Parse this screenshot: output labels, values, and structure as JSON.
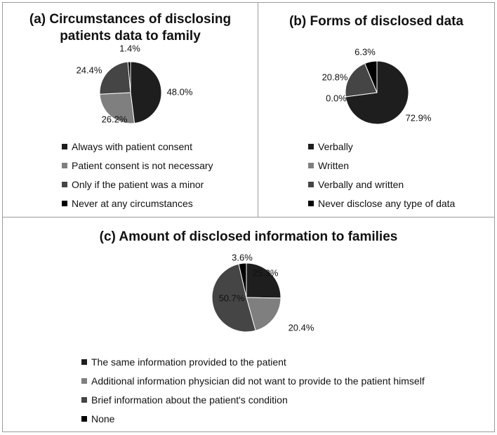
{
  "chart_data": [
    {
      "type": "pie",
      "title_line1": "(a) Circumstances of disclosing",
      "title_line2": "patients data to family",
      "categories": [
        "Always with patient consent",
        "Patient consent is not necessary",
        "Only if the patient was a minor",
        "Never at any circumstances"
      ],
      "values": [
        48.0,
        26.2,
        24.4,
        1.4
      ],
      "labels": [
        "48.0%",
        "26.2%",
        "24.4%",
        "1.4%"
      ],
      "colors": [
        "#1e1e1e",
        "#7f7f7f",
        "#454545",
        "#000000"
      ],
      "legend": "bottom"
    },
    {
      "type": "pie",
      "title_line1": "(b) Forms of disclosed data",
      "title_line2": "",
      "categories": [
        "Verbally",
        "Written",
        "Verbally and written",
        "Never disclose any type of data"
      ],
      "values": [
        72.9,
        0.0,
        20.8,
        6.3
      ],
      "labels": [
        "72.9%",
        "0.0%",
        "20.8%",
        "6.3%"
      ],
      "colors": [
        "#1e1e1e",
        "#7f7f7f",
        "#454545",
        "#000000"
      ],
      "legend": "bottom"
    },
    {
      "type": "pie",
      "title_line1": "(c) Amount of disclosed information to families",
      "title_line2": "",
      "categories": [
        "The same information provided to the patient",
        "Additional information physician did not want to provide to the patient himself",
        "Brief information about the patient's condition",
        "None"
      ],
      "values": [
        25.3,
        20.4,
        50.7,
        3.6
      ],
      "labels": [
        "25.3%",
        "20.4%",
        "50.7%",
        "3.6%"
      ],
      "colors": [
        "#1e1e1e",
        "#7f7f7f",
        "#454545",
        "#000000"
      ],
      "legend": "bottom"
    }
  ]
}
